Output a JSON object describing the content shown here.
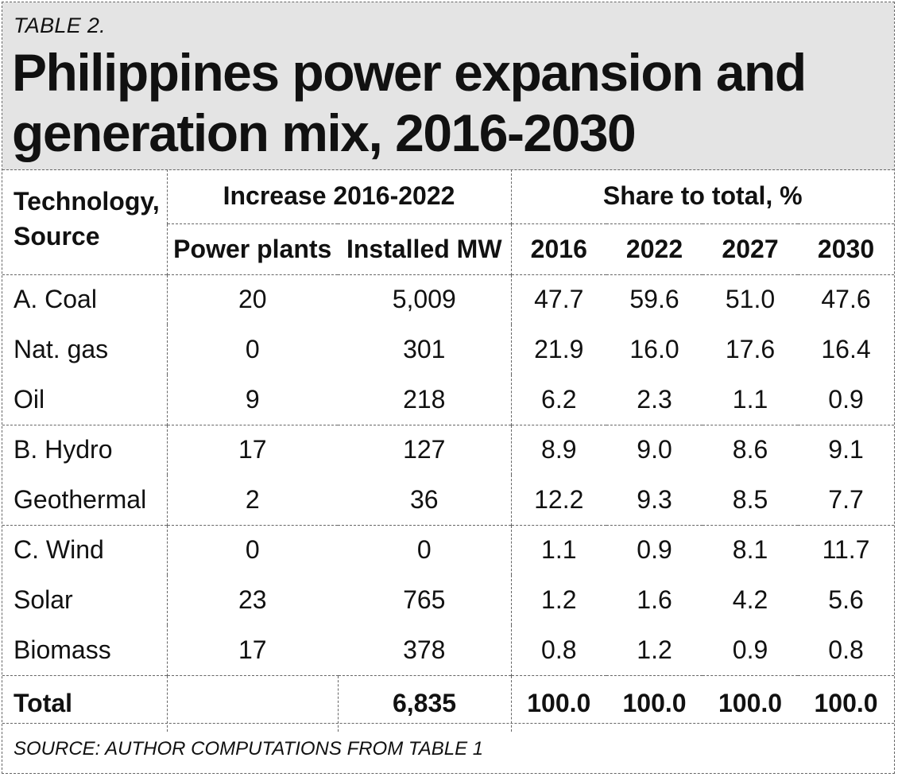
{
  "header": {
    "table_label": "TABLE 2.",
    "title": "Philippines power expansion and generation mix, 2016-2030"
  },
  "table": {
    "col_tech": "Technology, Source",
    "group_increase": "Increase 2016-2022",
    "group_share": "Share to total, %",
    "sub_headers": [
      "Power plants",
      "Installed MW",
      "2016",
      "2022",
      "2027",
      "2030"
    ],
    "rows": [
      {
        "source": "A. Coal",
        "plants": "20",
        "mw": "5,009",
        "y2016": "47.7",
        "y2022": "59.6",
        "y2027": "51.0",
        "y2030": "47.6"
      },
      {
        "source": "Nat. gas",
        "plants": "0",
        "mw": "301",
        "y2016": "21.9",
        "y2022": "16.0",
        "y2027": "17.6",
        "y2030": "16.4"
      },
      {
        "source": "Oil",
        "plants": "9",
        "mw": "218",
        "y2016": "6.2",
        "y2022": "2.3",
        "y2027": "1.1",
        "y2030": "0.9"
      },
      {
        "source": "B. Hydro",
        "plants": "17",
        "mw": "127",
        "y2016": "8.9",
        "y2022": "9.0",
        "y2027": "8.6",
        "y2030": "9.1"
      },
      {
        "source": "Geothermal",
        "plants": "2",
        "mw": "36",
        "y2016": "12.2",
        "y2022": "9.3",
        "y2027": "8.5",
        "y2030": "7.7"
      },
      {
        "source": "C. Wind",
        "plants": "0",
        "mw": "0",
        "y2016": "1.1",
        "y2022": "0.9",
        "y2027": "8.1",
        "y2030": "11.7"
      },
      {
        "source": "Solar",
        "plants": "23",
        "mw": "765",
        "y2016": "1.2",
        "y2022": "1.6",
        "y2027": "4.2",
        "y2030": "5.6"
      },
      {
        "source": "Biomass",
        "plants": "17",
        "mw": "378",
        "y2016": "0.8",
        "y2022": "1.2",
        "y2027": "0.9",
        "y2030": "0.8"
      }
    ],
    "total": {
      "label": "Total",
      "plants": "",
      "mw": "6,835",
      "y2016": "100.0",
      "y2022": "100.0",
      "y2027": "100.0",
      "y2030": "100.0"
    }
  },
  "footer": {
    "source": "SOURCE: AUTHOR COMPUTATIONS FROM TABLE 1"
  }
}
